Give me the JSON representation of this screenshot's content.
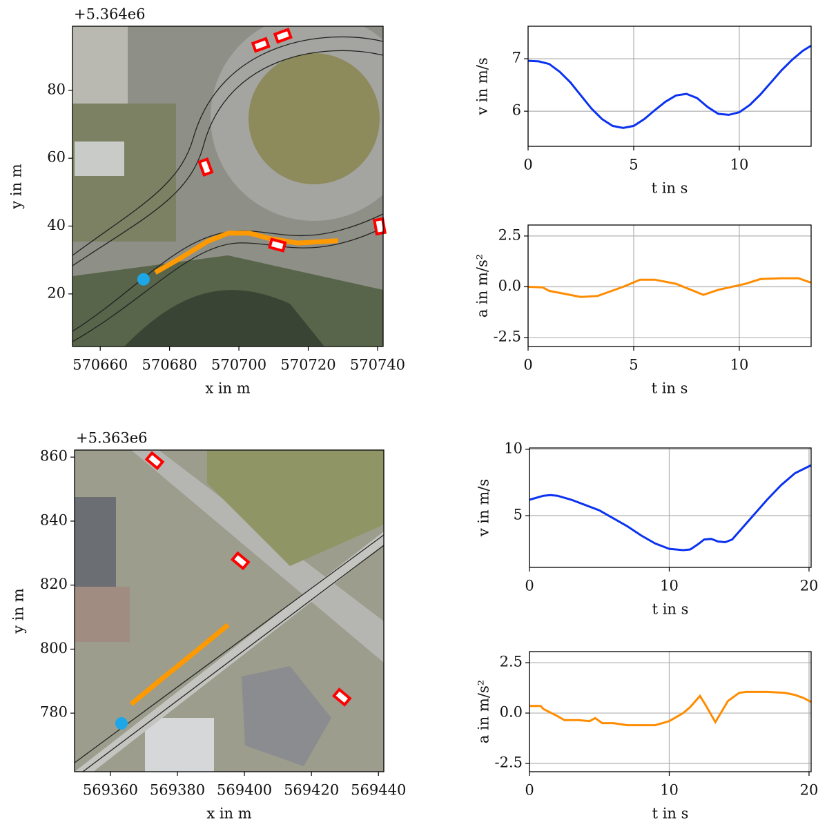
{
  "chart_data": [
    {
      "type": "map",
      "offset_label": "+5.364e6",
      "xlabel": "x in m",
      "ylabel": "y in m",
      "xlim": [
        570652,
        570741.6
      ],
      "ylim": [
        4.5,
        98.9
      ],
      "xticks": [
        570660,
        570680,
        570700,
        570720,
        570740
      ],
      "yticks": [
        20,
        40,
        60,
        80
      ],
      "trajectory": {
        "color": "#ff9900",
        "x": [
          570675.9,
          570682.9,
          570691,
          570697,
          570703,
          570709,
          570717,
          570728.6
        ],
        "y": [
          26.3,
          30.4,
          35.5,
          37.9,
          37.9,
          36.3,
          35,
          35.7
        ]
      },
      "ego": {
        "color": "#1ea7e8",
        "x": 570672.5,
        "y": 24.3
      },
      "vehicles": {
        "color": "#ff0000",
        "x": [
          570706.3,
          570712.7,
          570690.4,
          570711.1,
          570740.6
        ],
        "y": [
          93.4,
          96.1,
          57.4,
          34.4,
          39.9
        ]
      }
    },
    {
      "type": "line",
      "xlabel": "t in s",
      "ylabel": "v in m/s",
      "color": "#0a32f0",
      "grid": true,
      "xlim": [
        0,
        13.4
      ],
      "ylim": [
        5.33,
        7.62
      ],
      "xticks": [
        0,
        5,
        10
      ],
      "yticks": [
        6,
        7
      ],
      "x": [
        0,
        0.5,
        1,
        1.5,
        2,
        2.5,
        3,
        3.5,
        4,
        4.5,
        5,
        5.5,
        6,
        6.5,
        7,
        7.5,
        8,
        8.5,
        9,
        9.5,
        10,
        10.5,
        11,
        11.5,
        12,
        12.5,
        13,
        13.4
      ],
      "values": [
        6.96,
        6.95,
        6.9,
        6.75,
        6.55,
        6.3,
        6.05,
        5.85,
        5.72,
        5.68,
        5.72,
        5.85,
        6.02,
        6.18,
        6.3,
        6.33,
        6.25,
        6.08,
        5.95,
        5.93,
        5.98,
        6.12,
        6.32,
        6.55,
        6.78,
        6.98,
        7.15,
        7.25
      ]
    },
    {
      "type": "line",
      "xlabel": "t in s",
      "ylabel": "a in m/s²",
      "color": "#ff8c00",
      "grid": true,
      "xlim": [
        0,
        13.4
      ],
      "ylim": [
        -2.94,
        3.04
      ],
      "xticks": [
        0,
        5,
        10
      ],
      "yticks": [
        2.5,
        {
          "value": 0,
          "label": "0.0"
        },
        -2.5
      ],
      "x": [
        0,
        0.7,
        1,
        2.5,
        3.3,
        4.5,
        5.3,
        6,
        7,
        8.3,
        9,
        10.3,
        11,
        12,
        12.8,
        13.4
      ],
      "values": [
        0,
        -0.03,
        -0.2,
        -0.5,
        -0.45,
        0,
        0.35,
        0.35,
        0.15,
        -0.4,
        -0.15,
        0.15,
        0.38,
        0.42,
        0.42,
        0.2
      ]
    },
    {
      "type": "map",
      "offset_label": "+5.363e6",
      "xlabel": "x in m",
      "ylabel": "y in m",
      "xlim": [
        569349.3,
        569441.6
      ],
      "ylim": [
        761.7,
        862.2
      ],
      "xticks": [
        569360,
        569380,
        569400,
        569420,
        569440
      ],
      "yticks": [
        780,
        800,
        820,
        840,
        860
      ],
      "trajectory": {
        "color": "#ff9900",
        "x": [
          569366.2,
          569375.8,
          569385.5,
          569395.1
        ],
        "y": [
          782.8,
          791.1,
          799.3,
          807.6
        ]
      },
      "ego": {
        "color": "#1ea7e8",
        "x": 569363.3,
        "y": 776.8
      },
      "vehicles": {
        "color": "#ff0000",
        "x": [
          569373.2,
          569398.8,
          569429.1
        ],
        "y": [
          858.9,
          827.6,
          785
        ]
      }
    },
    {
      "type": "line",
      "xlabel": "t in s",
      "ylabel": "v in m/s",
      "color": "#0a32f0",
      "grid": true,
      "xlim": [
        0,
        20.15
      ],
      "ylim": [
        1.1,
        10.1
      ],
      "xticks": [
        0,
        10,
        20
      ],
      "yticks": [
        5,
        10
      ],
      "x": [
        0,
        1,
        1.5,
        2,
        3,
        4,
        5,
        6,
        7,
        8,
        9,
        10,
        11,
        11.5,
        12,
        12.5,
        13,
        13.5,
        14,
        14.5,
        15,
        16,
        17,
        18,
        19,
        20.15
      ],
      "values": [
        6.2,
        6.5,
        6.55,
        6.5,
        6.2,
        5.8,
        5.4,
        4.8,
        4.2,
        3.5,
        2.9,
        2.5,
        2.4,
        2.45,
        2.8,
        3.2,
        3.25,
        3.05,
        3.0,
        3.2,
        3.8,
        5.0,
        6.2,
        7.3,
        8.2,
        8.8
      ]
    },
    {
      "type": "line",
      "xlabel": "t in s",
      "ylabel": "a in m/s²",
      "color": "#ff8c00",
      "grid": true,
      "xlim": [
        0,
        20.15
      ],
      "ylim": [
        -2.91,
        3.05
      ],
      "xticks": [
        0,
        10,
        20
      ],
      "yticks": [
        2.5,
        {
          "value": 0,
          "label": "0.0"
        },
        -2.5
      ],
      "x": [
        0,
        0.8,
        1,
        2,
        2.5,
        3.5,
        4.3,
        4.7,
        5.2,
        6,
        7,
        8,
        9,
        10,
        11,
        11.5,
        12.2,
        12.6,
        13.3,
        14.2,
        15,
        15.5,
        17,
        18.3,
        19,
        19.6,
        20.15
      ],
      "values": [
        0.35,
        0.35,
        0.2,
        -0.15,
        -0.35,
        -0.35,
        -0.4,
        -0.25,
        -0.5,
        -0.5,
        -0.6,
        -0.6,
        -0.6,
        -0.4,
        0,
        0.3,
        0.85,
        0.4,
        -0.45,
        0.6,
        1.0,
        1.05,
        1.05,
        1.0,
        0.9,
        0.75,
        0.55
      ]
    }
  ]
}
